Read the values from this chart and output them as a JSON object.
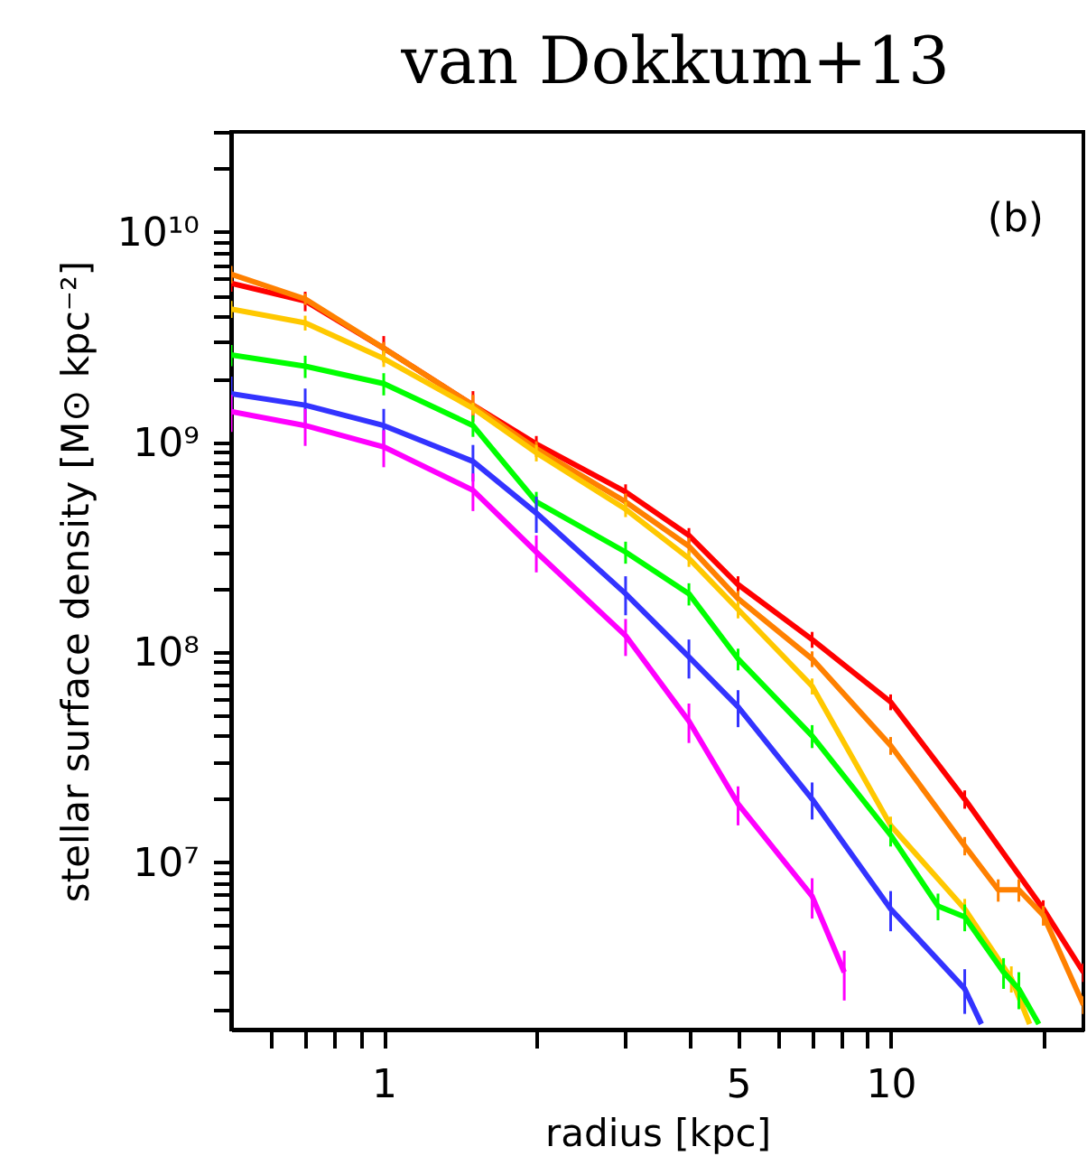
{
  "chart_data": {
    "type": "line",
    "title": "van Dokkum+13",
    "xlabel": "radius [kpc]",
    "ylabel": "stellar surface density [M⊙ kpc⁻²]",
    "annotations": [
      "(b)"
    ],
    "log": "xy",
    "marker": "none",
    "line_style": "solid",
    "xlim": [
      0.5,
      24
    ],
    "ylim": [
      1600000.0,
      30000000000.0
    ],
    "xticks": [
      {
        "value": 0.6,
        "label": null
      },
      {
        "value": 0.7,
        "label": null
      },
      {
        "value": 0.8,
        "label": null
      },
      {
        "value": 0.9,
        "label": null
      },
      1,
      {
        "value": 2,
        "label": null
      },
      {
        "value": 3,
        "label": null
      },
      {
        "value": 4,
        "label": null
      },
      5,
      {
        "value": 6,
        "label": null
      },
      {
        "value": 7,
        "label": null
      },
      {
        "value": 8,
        "label": null
      },
      {
        "value": 9,
        "label": null
      },
      10,
      {
        "value": 20,
        "label": null
      }
    ],
    "yticks": [
      {
        "value": 2000000.0,
        "label": null
      },
      {
        "value": 3000000.0,
        "label": null
      },
      {
        "value": 4000000.0,
        "label": null
      },
      {
        "value": 5000000.0,
        "label": null
      },
      {
        "value": 6000000.0,
        "label": null
      },
      {
        "value": 7000000.0,
        "label": null
      },
      {
        "value": 8000000.0,
        "label": null
      },
      {
        "value": 9000000.0,
        "label": null
      },
      {
        "value": 10000000.0,
        "label": "10⁷"
      },
      {
        "value": 20000000.0,
        "label": null
      },
      {
        "value": 30000000.0,
        "label": null
      },
      {
        "value": 40000000.0,
        "label": null
      },
      {
        "value": 50000000.0,
        "label": null
      },
      {
        "value": 60000000.0,
        "label": null
      },
      {
        "value": 70000000.0,
        "label": null
      },
      {
        "value": 80000000.0,
        "label": null
      },
      {
        "value": 90000000.0,
        "label": null
      },
      {
        "value": 100000000.0,
        "label": "10⁸"
      },
      {
        "value": 200000000.0,
        "label": null
      },
      {
        "value": 300000000.0,
        "label": null
      },
      {
        "value": 400000000.0,
        "label": null
      },
      {
        "value": 500000000.0,
        "label": null
      },
      {
        "value": 600000000.0,
        "label": null
      },
      {
        "value": 700000000.0,
        "label": null
      },
      {
        "value": 800000000.0,
        "label": null
      },
      {
        "value": 900000000.0,
        "label": null
      },
      {
        "value": 1000000000.0,
        "label": "10⁹"
      },
      {
        "value": 2000000000.0,
        "label": null
      },
      {
        "value": 3000000000.0,
        "label": null
      },
      {
        "value": 4000000000.0,
        "label": null
      },
      {
        "value": 5000000000.0,
        "label": null
      },
      {
        "value": 6000000000.0,
        "label": null
      },
      {
        "value": 7000000000.0,
        "label": null
      },
      {
        "value": 8000000000.0,
        "label": null
      },
      {
        "value": 9000000000.0,
        "label": null
      },
      {
        "value": 10000000000.0,
        "label": "10¹⁰"
      },
      {
        "value": 20000000000.0,
        "label": null
      },
      {
        "value": 30000000000.0,
        "label": null
      }
    ],
    "series": [
      {
        "color": "#ff0000",
        "x": [
          0.5,
          0.7,
          1,
          1.5,
          2,
          3,
          4,
          5,
          7,
          10,
          14,
          20,
          24
        ],
        "values": [
          5700000000.0,
          4700000000.0,
          2800000000.0,
          1500000000.0,
          980000000.0,
          580000000.0,
          360000000.0,
          210000000.0,
          115000000.0,
          58000000.0,
          20000000.0,
          6000000.0,
          3000000.0
        ],
        "errors": [
          500000000.0,
          500000000.0,
          400000000.0,
          250000000.0,
          90000000.0,
          50000000.0,
          30000000.0,
          20000000.0,
          10000000.0,
          5000000.0,
          2000000.0,
          600000.0,
          300000.0
        ]
      },
      {
        "color": "#ff8000",
        "x": [
          0.5,
          0.7,
          1,
          1.5,
          2,
          3,
          4,
          5,
          7,
          10,
          14,
          16.3,
          17.9,
          20,
          24
        ],
        "values": [
          6300000000.0,
          4800000000.0,
          2800000000.0,
          1500000000.0,
          930000000.0,
          520000000.0,
          320000000.0,
          180000000.0,
          93000000.0,
          36000000.0,
          12000000.0,
          7400000.0,
          7400000.0,
          5600000.0,
          2100000.0
        ],
        "errors": [
          600000000.0,
          300000000.0,
          200000000.0,
          180000000.0,
          80000000.0,
          50000000.0,
          30000000.0,
          16000000.0,
          8000000.0,
          3500000.0,
          1200000.0,
          900000.0,
          900000.0,
          600000.0,
          200000.0
        ]
      },
      {
        "color": "#ffc800",
        "x": [
          0.5,
          0.7,
          1,
          1.5,
          2,
          3,
          4,
          5,
          7,
          10,
          14,
          17.3,
          18.8
        ],
        "values": [
          4300000000.0,
          3700000000.0,
          2500000000.0,
          1450000000.0,
          890000000.0,
          480000000.0,
          280000000.0,
          160000000.0,
          69000000.0,
          15000000.0,
          6000000.0,
          2800000.0,
          1700000.0
        ],
        "errors": [
          400000000.0,
          300000000.0,
          220000000.0,
          90000000.0,
          80000000.0,
          40000000.0,
          25000000.0,
          15000000.0,
          6000000.0,
          1500000.0,
          700000.0,
          400000.0,
          null
        ]
      },
      {
        "color": "#00ff00",
        "x": [
          0.5,
          0.7,
          1,
          1.5,
          2,
          3,
          4,
          5,
          7,
          10,
          12.4,
          14,
          16.7,
          17.9,
          19.6
        ],
        "values": [
          2600000000.0,
          2300000000.0,
          1900000000.0,
          1200000000.0,
          520000000.0,
          300000000.0,
          190000000.0,
          93000000.0,
          40000000.0,
          13500000.0,
          6200000.0,
          5500000.0,
          3000000.0,
          2500000.0,
          1700000.0
        ],
        "errors": [
          300000000.0,
          280000000.0,
          230000000.0,
          140000000.0,
          60000000.0,
          36000000.0,
          23000000.0,
          11000000.0,
          5000000.0,
          1600000.0,
          900000.0,
          800000.0,
          500000.0,
          500000.0,
          null
        ]
      },
      {
        "color": "#3333ff",
        "x": [
          0.5,
          0.7,
          1,
          1.5,
          2,
          3,
          4,
          5,
          7,
          10,
          14,
          15.1
        ],
        "values": [
          1700000000.0,
          1500000000.0,
          1200000000.0,
          810000000.0,
          460000000.0,
          190000000.0,
          95000000.0,
          55000000.0,
          20000000.0,
          6000000.0,
          2500000.0,
          1700000.0
        ],
        "errors": [
          350000000.0,
          300000000.0,
          240000000.0,
          160000000.0,
          90000000.0,
          40000000.0,
          20000000.0,
          11000000.0,
          4000000.0,
          1300000.0,
          600000.0,
          null
        ]
      },
      {
        "color": "#ff00ff",
        "x": [
          0.5,
          0.7,
          1,
          1.5,
          2,
          3,
          4,
          5,
          7,
          8.1
        ],
        "values": [
          1400000000.0,
          1200000000.0,
          950000000.0,
          590000000.0,
          300000000.0,
          120000000.0,
          47000000.0,
          19000000.0,
          6900000.0,
          3000000.0
        ],
        "errors": [
          280000000.0,
          240000000.0,
          190000000.0,
          120000000.0,
          60000000.0,
          24000000.0,
          10000000.0,
          4000000.0,
          1500000.0,
          800000.0
        ]
      }
    ]
  }
}
